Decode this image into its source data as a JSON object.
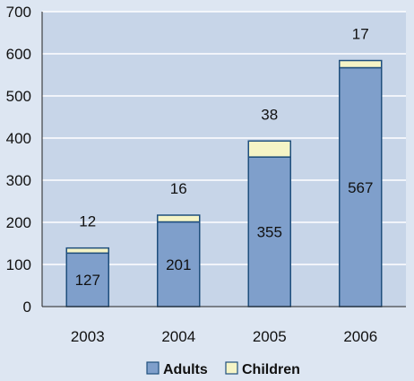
{
  "chart_data": {
    "type": "bar",
    "stacked": true,
    "categories": [
      "2003",
      "2004",
      "2005",
      "2006"
    ],
    "series": [
      {
        "name": "Adults",
        "values": [
          127,
          201,
          355,
          567
        ],
        "color": "#7f9fcb"
      },
      {
        "name": "Children",
        "values": [
          12,
          16,
          38,
          17
        ],
        "color": "#f5f4c6"
      }
    ],
    "ylim": [
      0,
      700
    ],
    "yticks": [
      0,
      100,
      200,
      300,
      400,
      500,
      600,
      700
    ],
    "grid": true,
    "legend": "bottom",
    "colors": {
      "background": "#dde6f2",
      "plot_background": "#c7d5e8",
      "grid": "#ffffff",
      "bar_stroke": "#1f4f7d"
    }
  }
}
